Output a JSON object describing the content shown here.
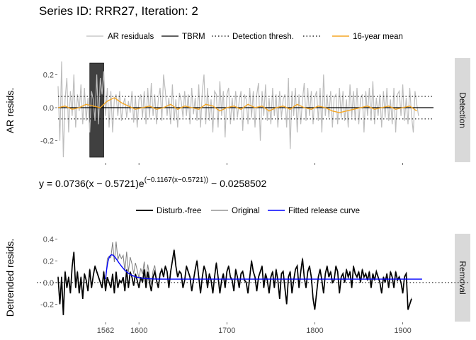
{
  "title": "Series ID: RRR27, Iteration: 2",
  "equation": {
    "lhs": "y = 0.0736",
    "paren1": "(x − 0.5721)",
    "e": "e",
    "exponent": "(−0.1167(x−0.5721))",
    "tail": " − 0.0258502"
  },
  "chart_data": [
    {
      "type": "line",
      "panel": "Detection",
      "ylabel": "AR resids.",
      "strip_label": "Detection",
      "xlim": [
        1508,
        1935
      ],
      "ylim": [
        -0.33,
        0.3
      ],
      "y_ticks": [
        {
          "v": 0.2,
          "label": "0.2"
        },
        {
          "v": 0.0,
          "label": "0.0"
        },
        {
          "v": -0.2,
          "label": "-0.2"
        }
      ],
      "x_tick_marks": [
        1562,
        1600,
        1700,
        1800,
        1900
      ],
      "legend": [
        {
          "name": "AR residuals",
          "style": "grey-solid"
        },
        {
          "name": "TBRM",
          "style": "black-solid"
        },
        {
          "name": "Detection thresh.",
          "style": "black-dotted"
        },
        {
          "name": "",
          "style": "black-dotted"
        },
        {
          "name": "16-year mean",
          "style": "orange-solid"
        }
      ],
      "tbrm": 0.0,
      "thresholds": [
        0.068,
        -0.068
      ],
      "disturbance_window": [
        1544,
        1560
      ],
      "colors": {
        "residuals": "#bdbdbd",
        "tbrm": "#000000",
        "threshold": "#000000",
        "mean": "#f5a623",
        "window": "#404040"
      },
      "series": [
        {
          "name": "AR residuals",
          "x_start": 1508,
          "x_step": 2,
          "values": [
            0.13,
            -0.2,
            0.28,
            -0.3,
            0.05,
            0.18,
            -0.15,
            0.1,
            -0.05,
            0.2,
            -0.12,
            0.08,
            -0.02,
            0.14,
            -0.1,
            0.12,
            -0.08,
            0.06,
            -0.15,
            0.1,
            0.05,
            -0.08,
            0.2,
            -0.1,
            0.18,
            0.08,
            0.22,
            -0.05,
            0.12,
            -0.12,
            0.1,
            -0.15,
            0.05,
            0.08,
            -0.05,
            0.1,
            -0.08,
            0.02,
            0.06,
            -0.06,
            0.04,
            -0.03,
            0.1,
            -0.09,
            0.07,
            -0.12,
            0.05,
            0.08,
            -0.06,
            0.1,
            -0.1,
            0.12,
            -0.06,
            0.15,
            -0.05,
            0.08,
            -0.1,
            0.05,
            0.12,
            -0.08,
            0.2,
            0.1,
            -0.05,
            0.06,
            -0.1,
            0.14,
            -0.08,
            0.05,
            -0.12,
            0.09,
            0.04,
            -0.06,
            0.1,
            -0.05,
            0.08,
            -0.1,
            0.12,
            -0.04,
            0.06,
            -0.08,
            0.14,
            -0.12,
            0.1,
            0.2,
            -0.1,
            0.12,
            -0.08,
            0.05,
            -0.15,
            0.1,
            0.08,
            -0.12,
            0.16,
            -0.05,
            0.1,
            -0.18,
            0.08,
            0.12,
            -0.1,
            0.06,
            -0.08,
            0.1,
            -0.06,
            0.04,
            0.1,
            -0.14,
            0.08,
            0.05,
            -0.1,
            0.12,
            -0.06,
            0.1,
            -0.12,
            0.08,
            0.15,
            -0.2,
            0.1,
            -0.05,
            0.14,
            -0.08,
            0.06,
            -0.1,
            0.12,
            -0.05,
            0.08,
            -0.12,
            0.1,
            -0.06,
            0.05,
            0.08,
            -0.12,
            0.18,
            -0.25,
            0.1,
            -0.05,
            0.12,
            -0.15,
            0.08,
            -0.1,
            0.05,
            0.15,
            -0.08,
            0.12,
            -0.05,
            0.1,
            -0.1,
            0.06,
            0.1,
            -0.08,
            0.12,
            -0.15,
            0.2,
            -0.05,
            0.08,
            -0.06,
            0.1,
            -0.12,
            0.06,
            0.08,
            -0.1,
            0.12,
            -0.06,
            0.1,
            -0.08,
            0.05,
            -0.12,
            0.14,
            -0.06,
            0.1,
            -0.08,
            0.12,
            -0.1,
            0.05,
            0.08,
            -0.15,
            0.1,
            -0.05,
            0.12,
            -0.08,
            0.16,
            -0.1,
            0.06,
            -0.05,
            0.08,
            -0.12,
            0.1,
            -0.06,
            0.12,
            -0.08,
            0.05,
            -0.1,
            0.12,
            -0.15,
            0.08,
            0.1,
            -0.05,
            0.14,
            -0.08,
            0.06,
            -0.1,
            0.12,
            -0.05,
            -0.15,
            0.1,
            0.02,
            -0.05
          ]
        },
        {
          "name": "16-year mean",
          "x_start": 1508,
          "x_step": 8,
          "values": [
            0.0,
            0.01,
            -0.01,
            0.0,
            0.02,
            0.01,
            0.0,
            0.04,
            0.06,
            0.03,
            0.01,
            -0.01,
            0.0,
            0.01,
            -0.01,
            0.0,
            0.02,
            -0.01,
            0.01,
            0.0,
            -0.01,
            0.02,
            0.01,
            -0.02,
            0.0,
            0.01,
            -0.01,
            0.02,
            0.0,
            0.01,
            -0.02,
            0.0,
            0.01,
            -0.01,
            0.02,
            0.0,
            -0.01,
            0.01,
            0.0,
            -0.02,
            -0.03,
            -0.02,
            -0.01,
            0.0,
            0.01,
            -0.01,
            0.0,
            0.01,
            -0.01,
            0.0,
            0.01,
            -0.02
          ]
        }
      ]
    },
    {
      "type": "line",
      "panel": "Removal",
      "ylabel": "Detrended resids.",
      "strip_label": "Removal",
      "xlim": [
        1508,
        1935
      ],
      "ylim": [
        -0.36,
        0.45
      ],
      "y_ticks": [
        {
          "v": 0.4,
          "label": "0.4"
        },
        {
          "v": 0.2,
          "label": "0.2"
        },
        {
          "v": 0.0,
          "label": "0.0"
        },
        {
          "v": -0.2,
          "label": "-0.2"
        }
      ],
      "x_ticks": [
        {
          "v": 1562,
          "label": "1562"
        },
        {
          "v": 1600,
          "label": "1600"
        },
        {
          "v": 1700,
          "label": "1700"
        },
        {
          "v": 1800,
          "label": "1800"
        },
        {
          "v": 1900,
          "label": "1900"
        }
      ],
      "legend": [
        {
          "name": "Disturb.-free",
          "style": "black-thick"
        },
        {
          "name": "Original",
          "style": "grey-solid"
        },
        {
          "name": "Fitted release curve",
          "style": "blue-solid"
        }
      ],
      "zero_line": 0.0,
      "colors": {
        "disturb_free": "#000000",
        "original": "#7f7f7f",
        "fitted": "#0000ff",
        "zero": "#000000"
      },
      "release_start": 1562,
      "series": [
        {
          "name": "Disturb.-free",
          "x_start": 1508,
          "x_step": 2,
          "values": [
            0.05,
            -0.2,
            0.05,
            -0.3,
            0.1,
            -0.05,
            0.05,
            -0.1,
            0.15,
            0.28,
            -0.05,
            0.1,
            -0.1,
            0.05,
            -0.15,
            0.08,
            0.02,
            -0.08,
            0.12,
            -0.05,
            0.06,
            0.15,
            0.1,
            0.05,
            0.0,
            -0.05,
            0.1,
            -0.08,
            0.05,
            0.0,
            -0.05,
            0.08,
            -0.1,
            0.1,
            -0.05,
            0.02,
            0.0,
            0.05,
            -0.08,
            0.12,
            -0.05,
            0.1,
            0.05,
            -0.03,
            0.08,
            0.02,
            -0.05,
            0.05,
            0.0,
            0.12,
            -0.05,
            0.1,
            0.0,
            -0.08,
            0.05,
            0.1,
            0.02,
            -0.05,
            0.08,
            0.12,
            0.05,
            0.15,
            0.1,
            -0.05,
            0.1,
            0.2,
            0.3,
            0.15,
            0.05,
            0.1,
            0.08,
            -0.05,
            0.02,
            0.15,
            0.1,
            0.05,
            -0.08,
            0.02,
            0.12,
            0.2,
            0.05,
            -0.1,
            0.05,
            0.15,
            0.1,
            -0.05,
            0.08,
            0.02,
            -0.1,
            0.05,
            0.18,
            0.05,
            -0.1,
            0.02,
            0.08,
            -0.05,
            0.1,
            0.15,
            0.05,
            0.02,
            -0.08,
            0.12,
            0.05,
            -0.05,
            0.08,
            0.1,
            0.02,
            0.0,
            -0.1,
            0.05,
            0.2,
            0.1,
            0.05,
            -0.08,
            0.05,
            0.1,
            0.15,
            -0.05,
            0.08,
            0.02,
            -0.1,
            0.05,
            0.1,
            -0.05,
            0.12,
            0.02,
            -0.15,
            0.08,
            0.1,
            -0.05,
            -0.2,
            0.05,
            0.1,
            -0.1,
            0.02,
            0.12,
            0.15,
            -0.05,
            0.1,
            0.22,
            0.05,
            -0.05,
            0.1,
            0.15,
            0.05,
            -0.15,
            -0.25,
            -0.1,
            0.05,
            0.12,
            0.02,
            -0.1,
            0.08,
            0.15,
            0.05,
            0.1,
            0.0,
            0.02,
            0.15,
            0.1,
            -0.1,
            0.05,
            0.08,
            0.0,
            0.12,
            0.05,
            0.1,
            -0.05,
            0.15,
            0.08,
            0.05,
            0.1,
            0.0,
            0.12,
            0.05,
            0.08,
            0.02,
            0.1,
            -0.05,
            0.08,
            0.02,
            0.1,
            0.05,
            0.0,
            -0.1,
            0.05,
            0.0,
            0.08,
            -0.05,
            0.1,
            0.05,
            -0.05,
            0.1,
            0.02,
            0.05,
            0.0,
            -0.1,
            0.05,
            0.08,
            -0.25,
            -0.2,
            -0.15
          ]
        },
        {
          "name": "Fitted release curve",
          "x_start": 1562,
          "x_end": 1922
        }
      ]
    }
  ]
}
